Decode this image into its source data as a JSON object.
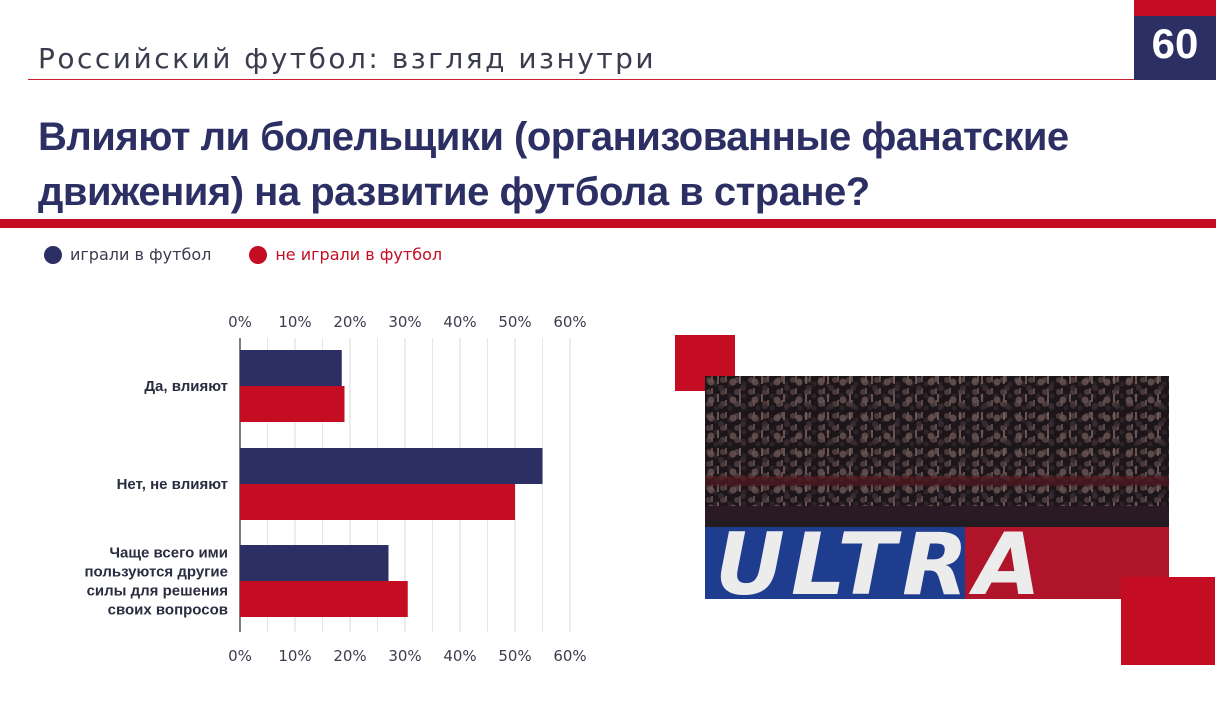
{
  "header": {
    "subtitle": "Российский футбол: взгляд изнутри",
    "page_number": "60",
    "title_line1": "Влияют ли болельщики (организованные фанатские",
    "title_line2": "движения) на развитие футбола в стране?"
  },
  "colors": {
    "navy": "#2c2f63",
    "red": "#c40d23",
    "accent_line": "#c9202f"
  },
  "photo": {
    "banner_text": "ULTRA"
  },
  "chart_data": {
    "type": "bar",
    "orientation": "horizontal",
    "title": "",
    "xlabel": "",
    "ylabel": "",
    "xlim": [
      0,
      60
    ],
    "x_ticks": [
      "0%",
      "10%",
      "20%",
      "30%",
      "40%",
      "50%",
      "60%"
    ],
    "x_ticks_top": true,
    "x_ticks_bottom": true,
    "grid": "vertical",
    "legend_position": "top-left",
    "categories": [
      [
        "Да, влияют"
      ],
      [
        "Нет, не влияют"
      ],
      [
        "Чаще всего ими",
        "пользуются другие",
        "силы для решения",
        "своих вопросов"
      ]
    ],
    "series": [
      {
        "name": "играли в футбол",
        "color": "#2c2f63",
        "values": [
          18.5,
          55,
          27
        ]
      },
      {
        "name": "не играли в футбол",
        "color": "#c40d23",
        "values": [
          19,
          50,
          30.5
        ]
      }
    ]
  }
}
